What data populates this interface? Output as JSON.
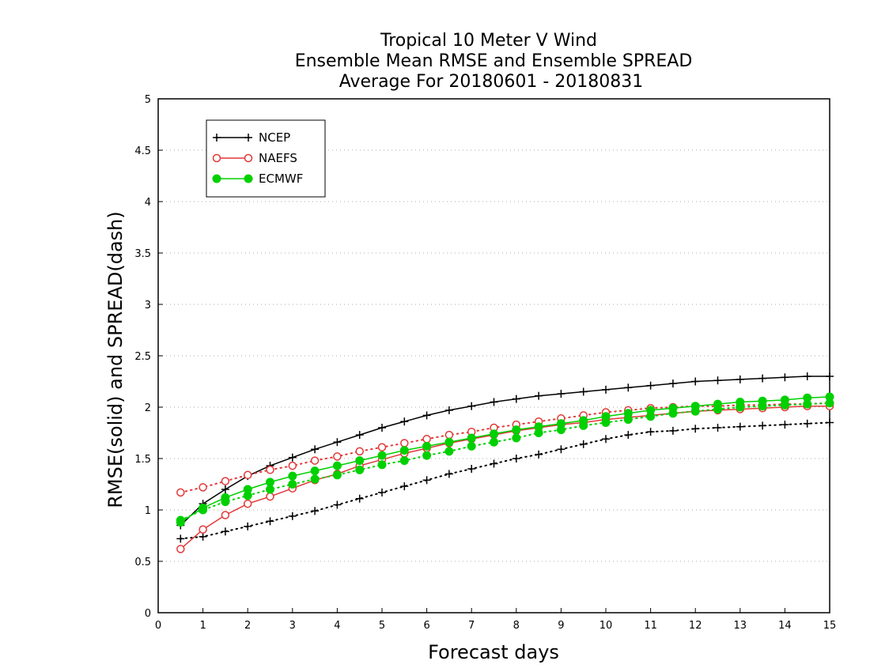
{
  "chart_data": {
    "type": "line",
    "title": [
      "Tropical 10 Meter V Wind",
      "Ensemble Mean RMSE and Ensemble SPREAD",
      "Average For 20180601 - 20180831"
    ],
    "xlabel": "Forecast days",
    "ylabel": "RMSE(solid) and SPREAD(dash)",
    "xlim": [
      0,
      15
    ],
    "ylim": [
      0,
      5
    ],
    "x_ticks": [
      "0",
      "1",
      "2",
      "3",
      "4",
      "5",
      "6",
      "7",
      "8",
      "9",
      "10",
      "11",
      "12",
      "13",
      "14",
      "15"
    ],
    "y_ticks": [
      "0",
      "0.5",
      "1",
      "1.5",
      "2",
      "2.5",
      "3",
      "3.5",
      "4",
      "4.5",
      "5"
    ],
    "grid": "horizontal dotted",
    "legend_position": "top-left",
    "x": [
      0.5,
      1,
      1.5,
      2,
      2.5,
      3,
      3.5,
      4,
      4.5,
      5,
      5.5,
      6,
      6.5,
      7,
      7.5,
      8,
      8.5,
      9,
      9.5,
      10,
      10.5,
      11,
      11.5,
      12,
      12.5,
      13,
      13.5,
      14,
      14.5,
      15
    ],
    "series": [
      {
        "name": "NCEP",
        "color": "#000000",
        "marker": "plus",
        "rmse": [
          0.85,
          1.06,
          1.2,
          1.33,
          1.43,
          1.51,
          1.59,
          1.66,
          1.73,
          1.8,
          1.86,
          1.92,
          1.97,
          2.01,
          2.05,
          2.08,
          2.11,
          2.13,
          2.15,
          2.17,
          2.19,
          2.21,
          2.23,
          2.25,
          2.26,
          2.27,
          2.28,
          2.29,
          2.3,
          2.3
        ],
        "spread": [
          0.72,
          0.74,
          0.79,
          0.84,
          0.89,
          0.94,
          0.99,
          1.05,
          1.11,
          1.17,
          1.23,
          1.29,
          1.35,
          1.4,
          1.45,
          1.5,
          1.54,
          1.59,
          1.64,
          1.69,
          1.73,
          1.76,
          1.77,
          1.79,
          1.8,
          1.81,
          1.82,
          1.83,
          1.84,
          1.85
        ]
      },
      {
        "name": "NAEFS",
        "color": "#e23838",
        "marker": "open-circle",
        "rmse": [
          0.62,
          0.81,
          0.95,
          1.06,
          1.13,
          1.21,
          1.29,
          1.35,
          1.43,
          1.49,
          1.55,
          1.6,
          1.65,
          1.69,
          1.73,
          1.77,
          1.8,
          1.83,
          1.85,
          1.88,
          1.9,
          1.92,
          1.94,
          1.96,
          1.97,
          1.98,
          1.99,
          2.0,
          2.01,
          2.01
        ],
        "spread": [
          1.17,
          1.22,
          1.28,
          1.34,
          1.39,
          1.43,
          1.48,
          1.52,
          1.57,
          1.61,
          1.65,
          1.69,
          1.73,
          1.76,
          1.8,
          1.83,
          1.86,
          1.89,
          1.92,
          1.95,
          1.97,
          1.99,
          2.0,
          2.01,
          2.01,
          2.02,
          2.02,
          2.03,
          2.03,
          2.04
        ]
      },
      {
        "name": "ECMWF",
        "color": "#00d000",
        "marker": "filled-circle",
        "rmse": [
          0.88,
          1.02,
          1.12,
          1.2,
          1.27,
          1.33,
          1.38,
          1.43,
          1.48,
          1.53,
          1.58,
          1.62,
          1.66,
          1.7,
          1.74,
          1.78,
          1.81,
          1.84,
          1.87,
          1.91,
          1.94,
          1.97,
          1.99,
          2.01,
          2.03,
          2.05,
          2.06,
          2.07,
          2.09,
          2.1
        ],
        "spread": [
          0.9,
          1.0,
          1.08,
          1.14,
          1.2,
          1.25,
          1.3,
          1.34,
          1.39,
          1.44,
          1.48,
          1.53,
          1.57,
          1.62,
          1.66,
          1.7,
          1.75,
          1.78,
          1.82,
          1.85,
          1.88,
          1.91,
          1.94,
          1.96,
          1.98,
          2.0,
          2.01,
          2.02,
          2.03,
          2.04
        ]
      }
    ]
  }
}
